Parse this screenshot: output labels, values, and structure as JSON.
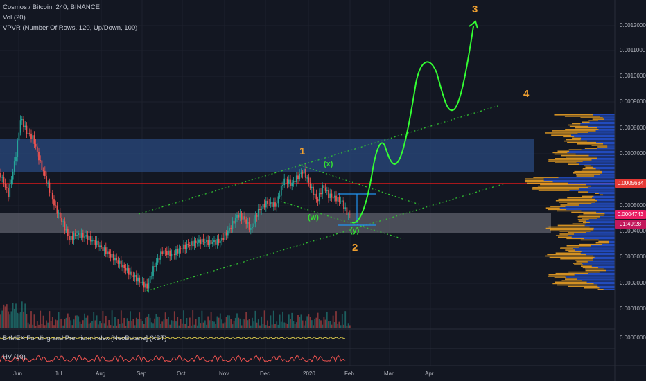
{
  "header": {
    "title": "Cosmos / Bitcoin, 240, BINANCE",
    "vol": "Vol (20)",
    "vpvr": "VPVR (Number Of Rows, 120, Up/Down, 100)"
  },
  "panes": {
    "funding": "BitMEX Funding and Premium Index [NeoButane] (XBT)",
    "hv": "HV (10)"
  },
  "price_axis": {
    "ticks": [
      "0.0012000",
      "0.0011000",
      "0.0010000",
      "0.0009000",
      "0.0008000",
      "0.0007000",
      "0.0005000",
      "0.0004000",
      "0.0003000",
      "0.0002000",
      "0.0001000"
    ],
    "funding_tick": "0.0000000",
    "current_price": "0.0004743",
    "countdown": "01:49:28",
    "level_price": "0.0005684"
  },
  "time_axis": [
    "Jun",
    "Jul",
    "Aug",
    "Sep",
    "Oct",
    "Nov",
    "Dec",
    "2020",
    "Feb",
    "Mar",
    "Apr"
  ],
  "waves": {
    "w1": "1",
    "w2": "2",
    "w3": "3",
    "w4": "4",
    "wx": "(x)",
    "ww": "(w)",
    "wy": "(y)"
  },
  "colors": {
    "background": "#131722",
    "up": "#26a69a",
    "down": "#ef5350",
    "resistance_zone": "#2a4a7f",
    "support_zone": "#5d606b",
    "level_line": "#ff1a1a",
    "projection": "#33ff33",
    "channel": "#33cc33",
    "wave_label": "#f0a030",
    "vpvr_up": "#2962ff",
    "vpvr_down": "#f5a623",
    "price_tag": "#e91e63",
    "countdown_tag": "#d81b60",
    "level_tag": "#e53935"
  }
}
